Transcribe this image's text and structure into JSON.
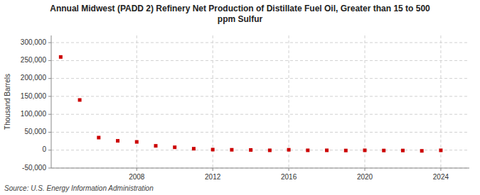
{
  "chart_data": {
    "type": "scatter",
    "title": "Annual Midwest (PADD 2) Refinery Net Production of Distillate Fuel Oil, Greater than 15 to 500\nppm Sulfur",
    "ylabel": "Thousand Barrels",
    "source": "Source: U.S. Energy Information Administration",
    "x": [
      2004,
      2005,
      2006,
      2007,
      2008,
      2009,
      2010,
      2011,
      2012,
      2013,
      2014,
      2015,
      2016,
      2017,
      2018,
      2019,
      2020,
      2021,
      2022,
      2023,
      2024
    ],
    "values": [
      260000,
      140000,
      35000,
      26000,
      23000,
      12000,
      8000,
      4000,
      1500,
      1000,
      500,
      -500,
      1000,
      -500,
      -500,
      -1000,
      -500,
      -1000,
      -1000,
      -2000,
      -500
    ],
    "color": "#cc0000",
    "marker": "square",
    "xlim": [
      2003.5,
      2025.5
    ],
    "xticks": [
      2008,
      2012,
      2016,
      2020,
      2024
    ],
    "ylim": [
      -50000,
      320000
    ],
    "yticks": [
      {
        "value": -50000,
        "label": "-50,000"
      },
      0,
      {
        "value": 50000,
        "label": "50,000"
      },
      {
        "value": 100000,
        "label": "100,000"
      },
      {
        "value": 150000,
        "label": "150,000"
      },
      {
        "value": 200000,
        "label": "200,000"
      },
      {
        "value": 250000,
        "label": "250,000"
      },
      {
        "value": 300000,
        "label": "300,000"
      }
    ],
    "grid": true
  }
}
